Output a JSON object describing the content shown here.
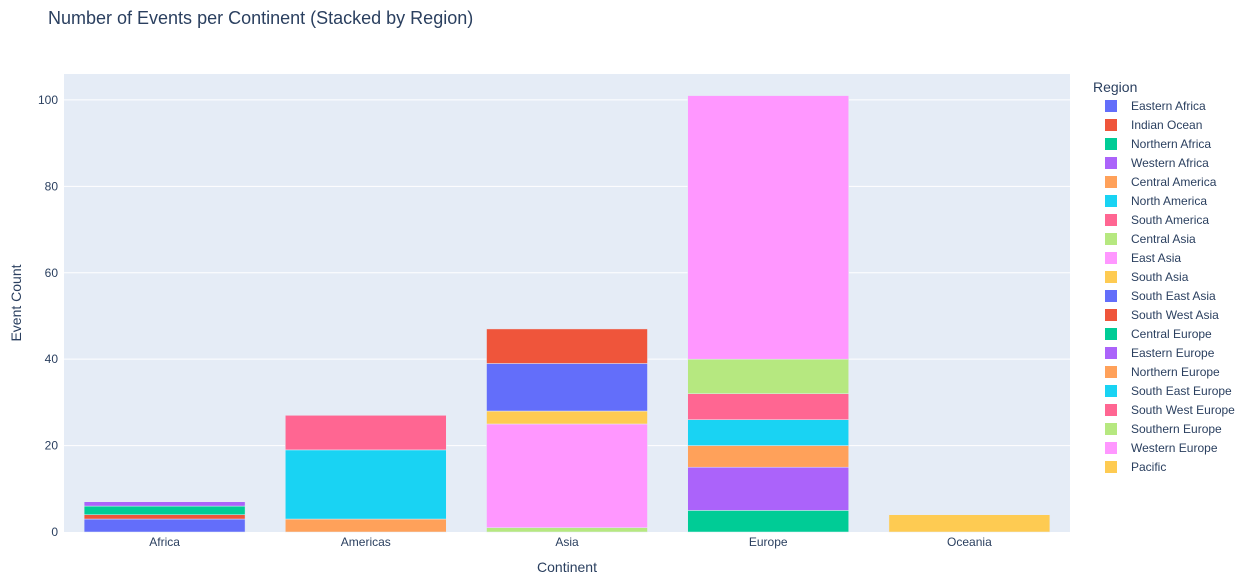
{
  "chart_data": {
    "type": "bar",
    "stacked": true,
    "title": "Number of Events per Continent (Stacked by Region)",
    "xlabel": "Continent",
    "ylabel": "Event Count",
    "ylim": [
      0,
      106
    ],
    "yticks": [
      0,
      20,
      40,
      60,
      80,
      100
    ],
    "grid": true,
    "legend_title": "Region",
    "legend_placement": "right",
    "categories": [
      "Africa",
      "Americas",
      "Asia",
      "Europe",
      "Oceania"
    ],
    "series": [
      {
        "name": "Eastern Africa",
        "color": "#636efa",
        "values": [
          3,
          0,
          0,
          0,
          0
        ]
      },
      {
        "name": "Indian Ocean",
        "color": "#EF553B",
        "values": [
          1,
          0,
          0,
          0,
          0
        ]
      },
      {
        "name": "Northern Africa",
        "color": "#00cc96",
        "values": [
          2,
          0,
          0,
          0,
          0
        ]
      },
      {
        "name": "Western Africa",
        "color": "#ab63fa",
        "values": [
          1,
          0,
          0,
          0,
          0
        ]
      },
      {
        "name": "Central America",
        "color": "#FFA15A",
        "values": [
          0,
          3,
          0,
          0,
          0
        ]
      },
      {
        "name": "North America",
        "color": "#19d3f3",
        "values": [
          0,
          16,
          0,
          0,
          0
        ]
      },
      {
        "name": "South America",
        "color": "#FF6692",
        "values": [
          0,
          8,
          0,
          0,
          0
        ]
      },
      {
        "name": "Central Asia",
        "color": "#B6E880",
        "values": [
          0,
          0,
          1,
          0,
          0
        ]
      },
      {
        "name": "East Asia",
        "color": "#FF97FF",
        "values": [
          0,
          0,
          24,
          0,
          0
        ]
      },
      {
        "name": "South Asia",
        "color": "#FECB52",
        "values": [
          0,
          0,
          3,
          0,
          0
        ]
      },
      {
        "name": "South East Asia",
        "color": "#636efa",
        "values": [
          0,
          0,
          11,
          0,
          0
        ]
      },
      {
        "name": "South West Asia",
        "color": "#EF553B",
        "values": [
          0,
          0,
          8,
          0,
          0
        ]
      },
      {
        "name": "Central Europe",
        "color": "#00cc96",
        "values": [
          0,
          0,
          0,
          5,
          0
        ]
      },
      {
        "name": "Eastern Europe",
        "color": "#ab63fa",
        "values": [
          0,
          0,
          0,
          10,
          0
        ]
      },
      {
        "name": "Northern Europe",
        "color": "#FFA15A",
        "values": [
          0,
          0,
          0,
          5,
          0
        ]
      },
      {
        "name": "South East Europe",
        "color": "#19d3f3",
        "values": [
          0,
          0,
          0,
          6,
          0
        ]
      },
      {
        "name": "South West Europe",
        "color": "#FF6692",
        "values": [
          0,
          0,
          0,
          6,
          0
        ]
      },
      {
        "name": "Southern Europe",
        "color": "#B6E880",
        "values": [
          0,
          0,
          0,
          8,
          0
        ]
      },
      {
        "name": "Western Europe",
        "color": "#FF97FF",
        "values": [
          0,
          0,
          0,
          61,
          0
        ]
      },
      {
        "name": "Pacific",
        "color": "#FECB52",
        "values": [
          0,
          0,
          0,
          0,
          4
        ]
      }
    ],
    "colors": {
      "plot_bg": "#e5ecf6",
      "grid": "#ffffff",
      "text": "#2a3f5f"
    }
  }
}
